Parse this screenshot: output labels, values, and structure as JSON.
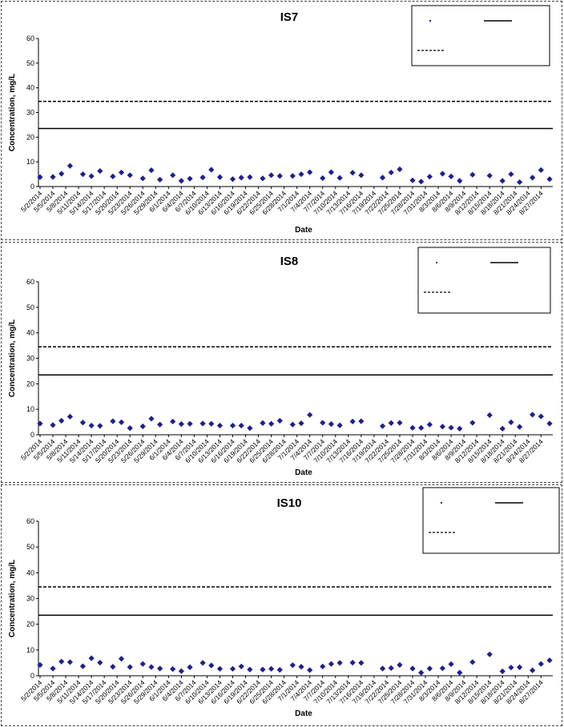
{
  "dates": [
    "5/2/2014",
    "5/5/2014",
    "5/8/2014",
    "5/11/2014",
    "5/14/2014",
    "5/17/2014",
    "5/20/2014",
    "5/23/2014",
    "5/26/2014",
    "5/29/2014",
    "6/1/2014",
    "6/4/2014",
    "6/7/2014",
    "6/10/2014",
    "6/13/2014",
    "6/16/2014",
    "6/19/2014",
    "6/22/2014",
    "6/25/2014",
    "6/28/2014",
    "7/1/2014",
    "7/4/2014",
    "7/7/2014",
    "7/10/2014",
    "7/13/2014",
    "7/16/2014",
    "7/19/2014",
    "7/22/2014",
    "7/25/2014",
    "7/28/2014",
    "7/31/2014",
    "8/3/2014",
    "8/6/2014",
    "8/9/2014",
    "8/12/2014",
    "8/15/2014",
    "8/18/2014",
    "8/21/2014",
    "8/24/2014",
    "8/27/2014"
  ],
  "colors": {
    "marker": "#1f1f8f",
    "line": "#000000"
  },
  "chart_data": [
    {
      "type": "scatter",
      "title": "IS7",
      "xlabel": "Date",
      "ylabel": "Concentration, mg/L",
      "ylim": [
        0,
        60
      ],
      "yticks": [
        "0",
        "10",
        "20",
        "30",
        "40",
        "50",
        "60"
      ],
      "xlim": [
        "5/2/2014",
        "8/29/2014"
      ],
      "legend_position": "top-right",
      "reference_lines": [
        {
          "style": "solid",
          "value": 23.5
        },
        {
          "style": "dashed",
          "value": 34.5
        }
      ],
      "points": [
        [
          "5/2/2014",
          3.8
        ],
        [
          "5/5/2014",
          3.9
        ],
        [
          "5/7/2014",
          5.2
        ],
        [
          "5/9/2014",
          8.4
        ],
        [
          "5/12/2014",
          5
        ],
        [
          "5/14/2014",
          4.2
        ],
        [
          "5/16/2014",
          6.3
        ],
        [
          "5/19/2014",
          4.1
        ],
        [
          "5/21/2014",
          5.7
        ],
        [
          "5/23/2014",
          4.6
        ],
        [
          "5/26/2014",
          3.3
        ],
        [
          "5/28/2014",
          6.6
        ],
        [
          "5/30/2014",
          2.8
        ],
        [
          "6/2/2014",
          4.6
        ],
        [
          "6/4/2014",
          2.3
        ],
        [
          "6/6/2014",
          3.2
        ],
        [
          "6/9/2014",
          3.7
        ],
        [
          "6/11/2014",
          6.8
        ],
        [
          "6/13/2014",
          3.8
        ],
        [
          "6/16/2014",
          3
        ],
        [
          "6/18/2014",
          3.6
        ],
        [
          "6/20/2014",
          3.8
        ],
        [
          "6/23/2014",
          3.3
        ],
        [
          "6/25/2014",
          4.6
        ],
        [
          "6/27/2014",
          4.3
        ],
        [
          "6/30/2014",
          4.3
        ],
        [
          "7/2/2014",
          5
        ],
        [
          "7/4/2014",
          5.8
        ],
        [
          "7/7/2014",
          3.4
        ],
        [
          "7/9/2014",
          5.8
        ],
        [
          "7/11/2014",
          3.5
        ],
        [
          "7/14/2014",
          5.6
        ],
        [
          "7/16/2014",
          4.6
        ],
        [
          "7/21/2014",
          3.6
        ],
        [
          "7/23/2014",
          5.7
        ],
        [
          "7/25/2014",
          7
        ],
        [
          "7/28/2014",
          2.5
        ],
        [
          "7/30/2014",
          2
        ],
        [
          "8/1/2014",
          4
        ],
        [
          "8/4/2014",
          5.2
        ],
        [
          "8/6/2014",
          4.1
        ],
        [
          "8/8/2014",
          2.3
        ],
        [
          "8/11/2014",
          4.8
        ],
        [
          "8/15/2014",
          4.4
        ],
        [
          "8/18/2014",
          2.3
        ],
        [
          "8/20/2014",
          5
        ],
        [
          "8/22/2014",
          1.8
        ],
        [
          "8/25/2014",
          3.6
        ],
        [
          "8/27/2014",
          6.7
        ],
        [
          "8/29/2014",
          3
        ]
      ]
    },
    {
      "type": "scatter",
      "title": "IS8",
      "xlabel": "Date",
      "ylabel": "Concentration, mg/L",
      "ylim": [
        0,
        60
      ],
      "yticks": [
        "0",
        "10",
        "20",
        "30",
        "40",
        "50",
        "60"
      ],
      "xlim": [
        "5/2/2014",
        "8/29/2014"
      ],
      "legend_position": "top-right",
      "reference_lines": [
        {
          "style": "solid",
          "value": 23.5
        },
        {
          "style": "dashed",
          "value": 34.5
        }
      ],
      "points": [
        [
          "5/2/2014",
          4.4
        ],
        [
          "5/5/2014",
          3.8
        ],
        [
          "5/7/2014",
          5.5
        ],
        [
          "5/9/2014",
          7.1
        ],
        [
          "5/12/2014",
          4.8
        ],
        [
          "5/14/2014",
          3.6
        ],
        [
          "5/16/2014",
          3.5
        ],
        [
          "5/19/2014",
          5.3
        ],
        [
          "5/21/2014",
          4.9
        ],
        [
          "5/23/2014",
          2.6
        ],
        [
          "5/26/2014",
          3.3
        ],
        [
          "5/28/2014",
          6.3
        ],
        [
          "5/30/2014",
          4
        ],
        [
          "6/2/2014",
          5.2
        ],
        [
          "6/4/2014",
          4.2
        ],
        [
          "6/6/2014",
          4.3
        ],
        [
          "6/9/2014",
          4.4
        ],
        [
          "6/11/2014",
          4.3
        ],
        [
          "6/13/2014",
          3.6
        ],
        [
          "6/16/2014",
          3.6
        ],
        [
          "6/18/2014",
          3.6
        ],
        [
          "6/20/2014",
          2.6
        ],
        [
          "6/23/2014",
          4.6
        ],
        [
          "6/25/2014",
          4.3
        ],
        [
          "6/27/2014",
          5.5
        ],
        [
          "6/30/2014",
          4
        ],
        [
          "7/2/2014",
          4.5
        ],
        [
          "7/4/2014",
          7.8
        ],
        [
          "7/7/2014",
          4.7
        ],
        [
          "7/9/2014",
          4.2
        ],
        [
          "7/11/2014",
          3.7
        ],
        [
          "7/14/2014",
          5.2
        ],
        [
          "7/16/2014",
          5.3
        ],
        [
          "7/21/2014",
          3.4
        ],
        [
          "7/23/2014",
          4.6
        ],
        [
          "7/25/2014",
          4.7
        ],
        [
          "7/28/2014",
          2.7
        ],
        [
          "7/30/2014",
          2.7
        ],
        [
          "8/1/2014",
          4
        ],
        [
          "8/4/2014",
          3.2
        ],
        [
          "8/6/2014",
          2.8
        ],
        [
          "8/8/2014",
          2.4
        ],
        [
          "8/11/2014",
          4.7
        ],
        [
          "8/15/2014",
          7.7
        ],
        [
          "8/18/2014",
          2.4
        ],
        [
          "8/20/2014",
          4.9
        ],
        [
          "8/22/2014",
          3.1
        ],
        [
          "8/25/2014",
          7.9
        ],
        [
          "8/27/2014",
          7.2
        ],
        [
          "8/29/2014",
          4.4
        ]
      ]
    },
    {
      "type": "scatter",
      "title": "IS10",
      "xlabel": "Date",
      "ylabel": "Concentration, mg/L",
      "ylim": [
        0,
        60
      ],
      "yticks": [
        "0",
        "10",
        "20",
        "30",
        "40",
        "50",
        "60"
      ],
      "xlim": [
        "5/2/2014",
        "8/29/2014"
      ],
      "legend_position": "top-right",
      "reference_lines": [
        {
          "style": "solid",
          "value": 23.5
        },
        {
          "style": "dashed",
          "value": 34.5
        }
      ],
      "points": [
        [
          "5/2/2014",
          4.2
        ],
        [
          "5/5/2014",
          2.8
        ],
        [
          "5/7/2014",
          5.5
        ],
        [
          "5/9/2014",
          5.3
        ],
        [
          "5/12/2014",
          3.7
        ],
        [
          "5/14/2014",
          6.8
        ],
        [
          "5/16/2014",
          5.1
        ],
        [
          "5/19/2014",
          3.5
        ],
        [
          "5/21/2014",
          6.6
        ],
        [
          "5/23/2014",
          3.4
        ],
        [
          "5/26/2014",
          4.6
        ],
        [
          "5/28/2014",
          3.4
        ],
        [
          "5/30/2014",
          2.8
        ],
        [
          "6/2/2014",
          2.6
        ],
        [
          "6/4/2014",
          1.8
        ],
        [
          "6/6/2014",
          3.3
        ],
        [
          "6/9/2014",
          5
        ],
        [
          "6/11/2014",
          4
        ],
        [
          "6/13/2014",
          2.7
        ],
        [
          "6/16/2014",
          2.7
        ],
        [
          "6/18/2014",
          3.6
        ],
        [
          "6/20/2014",
          2.4
        ],
        [
          "6/23/2014",
          2.4
        ],
        [
          "6/25/2014",
          2.7
        ],
        [
          "6/27/2014",
          2.3
        ],
        [
          "6/30/2014",
          4.1
        ],
        [
          "7/2/2014",
          3.5
        ],
        [
          "7/4/2014",
          2.2
        ],
        [
          "7/7/2014",
          3.6
        ],
        [
          "7/9/2014",
          4.6
        ],
        [
          "7/11/2014",
          5
        ],
        [
          "7/14/2014",
          5.1
        ],
        [
          "7/16/2014",
          5
        ],
        [
          "7/21/2014",
          2.8
        ],
        [
          "7/23/2014",
          3
        ],
        [
          "7/25/2014",
          4.2
        ],
        [
          "7/28/2014",
          2.8
        ],
        [
          "7/30/2014",
          1.2
        ],
        [
          "8/1/2014",
          2.8
        ],
        [
          "8/4/2014",
          2.9
        ],
        [
          "8/6/2014",
          4.5
        ],
        [
          "8/8/2014",
          1.2
        ],
        [
          "8/11/2014",
          5.3
        ],
        [
          "8/15/2014",
          8.3
        ],
        [
          "8/18/2014",
          1.7
        ],
        [
          "8/20/2014",
          3.2
        ],
        [
          "8/22/2014",
          3.3
        ],
        [
          "8/25/2014",
          2.1
        ],
        [
          "8/27/2014",
          4.6
        ],
        [
          "8/29/2014",
          6
        ]
      ]
    }
  ]
}
